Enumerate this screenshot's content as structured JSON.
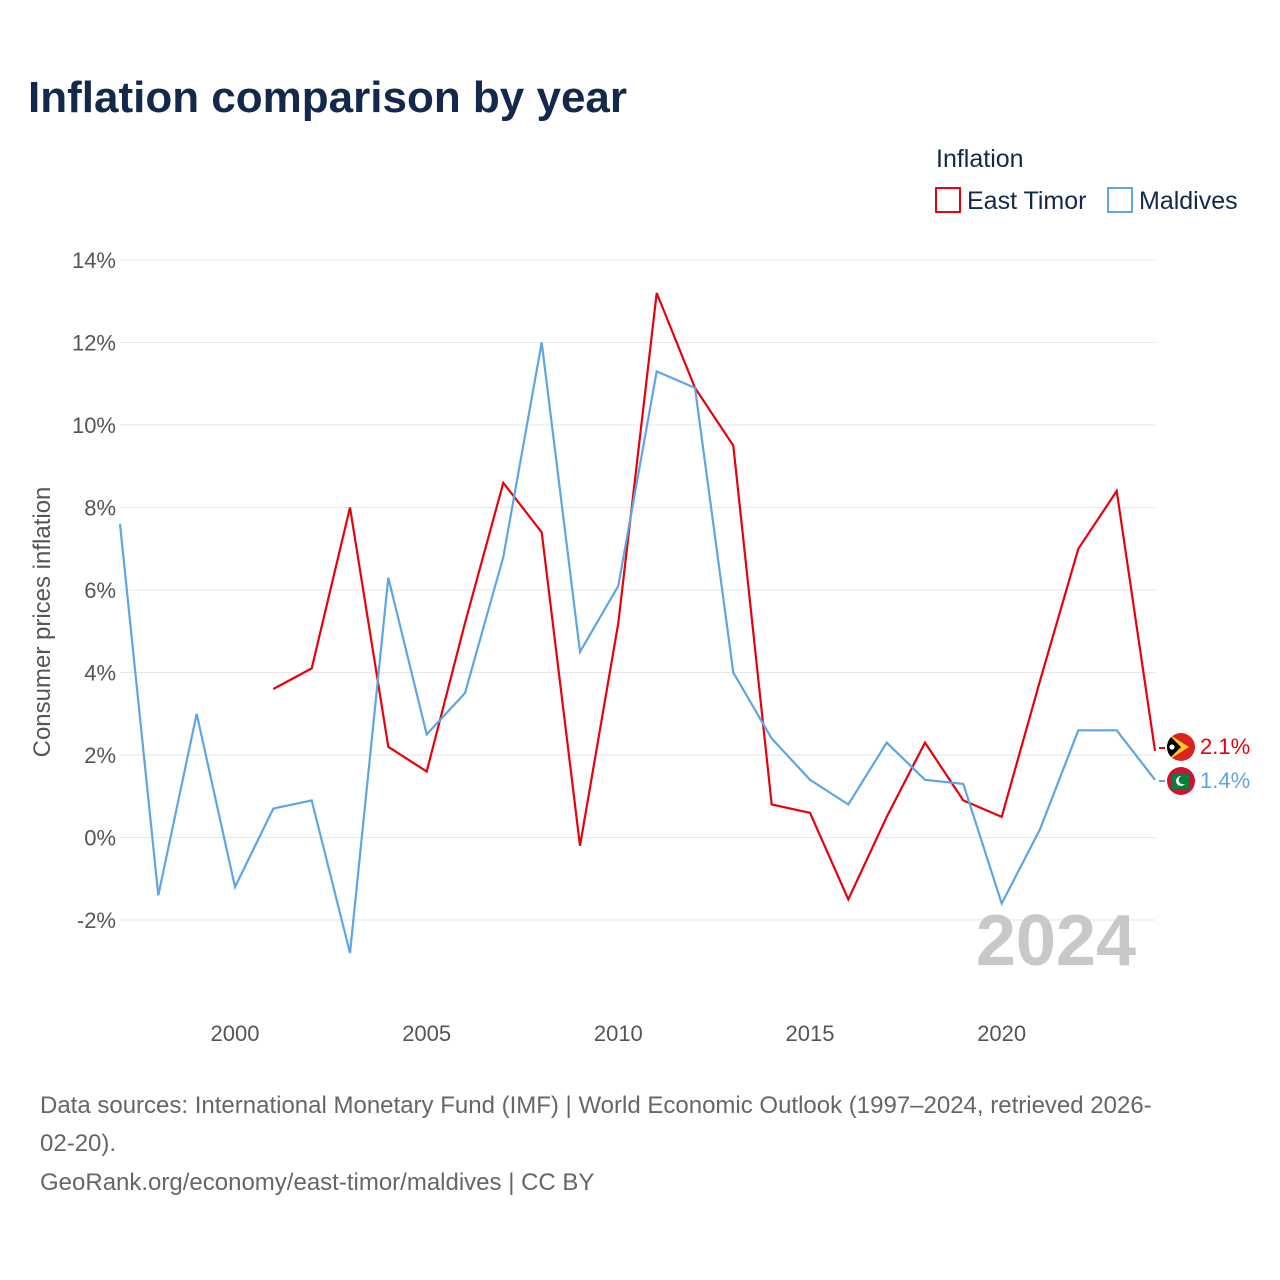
{
  "title": "Inflation comparison by year",
  "chart_data": {
    "type": "line",
    "legend_title": "Inflation",
    "legend_position": "top-right",
    "ylabel": "Consumer prices inflation",
    "xlabel": "",
    "ylim": [
      -3,
      14
    ],
    "xlim": [
      1997,
      2024
    ],
    "grid": true,
    "y_ticks": [
      -2,
      0,
      2,
      4,
      6,
      8,
      10,
      12,
      14
    ],
    "y_tick_labels": [
      "-2%",
      "0%",
      "2%",
      "4%",
      "6%",
      "8%",
      "10%",
      "12%",
      "14%"
    ],
    "x_ticks": [
      2000,
      2005,
      2010,
      2015,
      2020
    ],
    "x_tick_labels": [
      "2000",
      "2005",
      "2010",
      "2015",
      "2020"
    ],
    "year_watermark": "2024",
    "series": [
      {
        "name": "East Timor",
        "color": "#e8000b",
        "end_label": "2.1%",
        "flag_icon": "east-timor-flag-icon",
        "points": [
          [
            2001,
            3.6
          ],
          [
            2002,
            4.1
          ],
          [
            2003,
            8.0
          ],
          [
            2004,
            2.2
          ],
          [
            2005,
            1.6
          ],
          [
            2006,
            5.2
          ],
          [
            2007,
            8.6
          ],
          [
            2008,
            7.4
          ],
          [
            2009,
            -0.2
          ],
          [
            2010,
            5.2
          ],
          [
            2011,
            13.2
          ],
          [
            2012,
            10.9
          ],
          [
            2013,
            9.5
          ],
          [
            2014,
            0.8
          ],
          [
            2015,
            0.6
          ],
          [
            2016,
            -1.5
          ],
          [
            2017,
            0.5
          ],
          [
            2018,
            2.3
          ],
          [
            2019,
            0.9
          ],
          [
            2020,
            0.5
          ],
          [
            2021,
            3.8
          ],
          [
            2022,
            7.0
          ],
          [
            2023,
            8.4
          ],
          [
            2024,
            2.1
          ]
        ]
      },
      {
        "name": "Maldives",
        "color": "#5da5e3",
        "end_label": "1.4%",
        "flag_icon": "maldives-flag-icon",
        "points": [
          [
            1997,
            7.6
          ],
          [
            1998,
            -1.4
          ],
          [
            1999,
            3.0
          ],
          [
            2000,
            -1.2
          ],
          [
            2001,
            0.7
          ],
          [
            2002,
            0.9
          ],
          [
            2003,
            -2.8
          ],
          [
            2004,
            6.3
          ],
          [
            2005,
            2.5
          ],
          [
            2006,
            3.5
          ],
          [
            2007,
            6.8
          ],
          [
            2008,
            12.0
          ],
          [
            2009,
            4.5
          ],
          [
            2010,
            6.1
          ],
          [
            2011,
            11.3
          ],
          [
            2012,
            10.9
          ],
          [
            2013,
            4.0
          ],
          [
            2014,
            2.4
          ],
          [
            2015,
            1.4
          ],
          [
            2016,
            0.8
          ],
          [
            2017,
            2.3
          ],
          [
            2018,
            1.4
          ],
          [
            2019,
            1.3
          ],
          [
            2020,
            -1.6
          ],
          [
            2021,
            0.2
          ],
          [
            2022,
            2.6
          ],
          [
            2023,
            2.6
          ],
          [
            2024,
            1.4
          ]
        ]
      }
    ]
  },
  "source": {
    "line1": "Data sources: International Monetary Fund (IMF) | World Economic Outlook (1997–2024, retrieved 2026-",
    "line2": "02-20).",
    "line3": "GeoRank.org/economy/east-timor/maldives | CC BY"
  }
}
